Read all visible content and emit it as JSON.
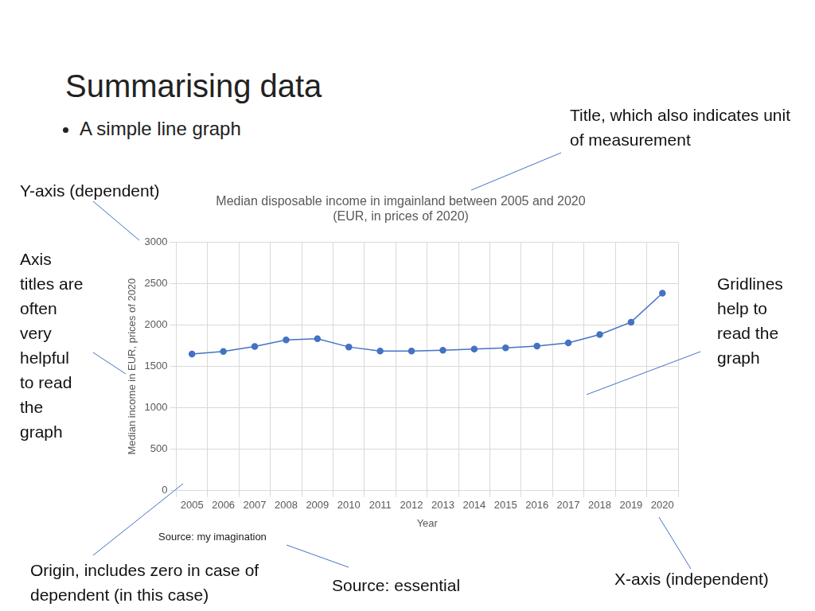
{
  "slide": {
    "title": "Summarising data",
    "bullet": "A simple line graph",
    "callouts": [
      "Title, which also indicates unit of measurement",
      "Y-axis (dependent)",
      "Axis titles are often very helpful to read the graph",
      "Gridlines help to read the graph",
      "Origin, includes zero in case of dependent (in this case)",
      "Source: essential",
      "X-axis (independent)"
    ]
  },
  "chart_data": {
    "type": "line",
    "title": [
      "Median disposable income in imgainland between 2005 and 2020",
      "(EUR, in prices of 2020)"
    ],
    "x_label": "Year",
    "y_label": "Median income in EUR, prices of 2020",
    "source": "Source: my imagination",
    "categories": [
      "2005",
      "2006",
      "2007",
      "2008",
      "2009",
      "2010",
      "2011",
      "2012",
      "2013",
      "2014",
      "2015",
      "2016",
      "2017",
      "2018",
      "2019",
      "2020"
    ],
    "values": [
      1650,
      1680,
      1740,
      1820,
      1835,
      1735,
      1685,
      1685,
      1695,
      1710,
      1725,
      1745,
      1785,
      1885,
      2035,
      2385
    ],
    "color": "#4472c4",
    "marker": "circle",
    "line_style": "solid",
    "ylim": [
      0,
      3000
    ],
    "yticks": [
      0,
      500,
      1000,
      1500,
      2000,
      2500,
      3000
    ],
    "grid": true
  }
}
